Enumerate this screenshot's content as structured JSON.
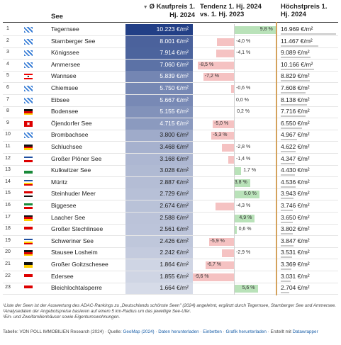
{
  "headers": {
    "see": "See",
    "kaufpreis": "Ø Kaufpreis 1. Hj. 2024",
    "kaufpreis_sort_icon": "sort-down-icon",
    "tendenz": "Tendenz 1. Hj. 2024 vs. 1. Hj. 2023",
    "hoechstpreis": "Höchstpreis 1. Hj. 2024"
  },
  "chart_data": {
    "type": "table",
    "columns": [
      "See",
      "Ø Kaufpreis 1. Hj. 2024",
      "Tendenz 1. Hj. 2024 vs. 1. Hj. 2023",
      "Höchstpreis 1. Hj. 2024"
    ],
    "rows": [
      {
        "rank": "1",
        "flag": "bavaria",
        "see": "Tegernsee",
        "price_label": "10.223 €/m²",
        "price": 10223,
        "tendenz_label": "9,8 %",
        "tendenz": 9.8,
        "max_label": "16.969 €/m²",
        "max": 16969
      },
      {
        "rank": "2",
        "flag": "bavaria",
        "see": "Starnberger See",
        "price_label": "8.001 €/m²",
        "price": 8001,
        "tendenz_label": "-4,0 %",
        "tendenz": -4.0,
        "max_label": "11.467 €/m²",
        "max": 11467
      },
      {
        "rank": "3",
        "flag": "bavaria",
        "see": "Königssee",
        "price_label": "7.914 €/m²",
        "price": 7914,
        "tendenz_label": "-4,1 %",
        "tendenz": -4.1,
        "max_label": "9.089 €/m²",
        "max": 9089
      },
      {
        "rank": "4",
        "flag": "bavaria",
        "see": "Ammersee",
        "price_label": "7.060 €/m²",
        "price": 7060,
        "tendenz_label": "-8,5 %",
        "tendenz": -8.5,
        "max_label": "10.166 €/m²",
        "max": 10166
      },
      {
        "rank": "5",
        "flag": "berlin",
        "see": "Wannsee",
        "price_label": "5.839 €/m²",
        "price": 5839,
        "tendenz_label": "-7,2 %",
        "tendenz": -7.2,
        "max_label": "8.829 €/m²",
        "max": 8829
      },
      {
        "rank": "6",
        "flag": "bavaria",
        "see": "Chiemsee",
        "price_label": "5.750 €/m²",
        "price": 5750,
        "tendenz_label": "-0,6 %",
        "tendenz": -0.6,
        "max_label": "7.608 €/m²",
        "max": 7608
      },
      {
        "rank": "7",
        "flag": "bavaria",
        "see": "Eibsee",
        "price_label": "5.667 €/m²",
        "price": 5667,
        "tendenz_label": "0,0 %",
        "tendenz": 0.0,
        "max_label": "8.138 €/m²",
        "max": 8138
      },
      {
        "rank": "8",
        "flag": "germany",
        "see": "Bodensee",
        "price_label": "5.155 €/m²",
        "price": 5155,
        "tendenz_label": "0,2 %",
        "tendenz": 0.2,
        "max_label": "7.716 €/m²",
        "max": 7716
      },
      {
        "rank": "9",
        "flag": "hamburg",
        "see": "Öjendorfer See",
        "price_label": "4.715 €/m²",
        "price": 4715,
        "tendenz_label": "-5,0 %",
        "tendenz": -5.0,
        "max_label": "6.550 €/m²",
        "max": 6550
      },
      {
        "rank": "10",
        "flag": "bavaria",
        "see": "Brombachsee",
        "price_label": "3.800 €/m²",
        "price": 3800,
        "tendenz_label": "-5,3 %",
        "tendenz": -5.3,
        "max_label": "4.967 €/m²",
        "max": 4967
      },
      {
        "rank": "11",
        "flag": "germany",
        "see": "Schluchsee",
        "price_label": "3.468 €/m²",
        "price": 3468,
        "tendenz_label": "-2,8 %",
        "tendenz": -2.8,
        "max_label": "4.622 €/m²",
        "max": 4622
      },
      {
        "rank": "12",
        "flag": "schleswig",
        "see": "Großer Plöner See",
        "price_label": "3.168 €/m²",
        "price": 3168,
        "tendenz_label": "-1,4 %",
        "tendenz": -1.4,
        "max_label": "4.347 €/m²",
        "max": 4347
      },
      {
        "rank": "13",
        "flag": "saxony",
        "see": "Kulkwitzer See",
        "price_label": "3.028 €/m²",
        "price": 3028,
        "tendenz_label": "1,7 %",
        "tendenz": 1.7,
        "max_label": "4.430 €/m²",
        "max": 4430
      },
      {
        "rank": "14",
        "flag": "mecklenburg",
        "see": "Müritz",
        "price_label": "2.887 €/m²",
        "price": 2887,
        "tendenz_label": "3,8 %",
        "tendenz": 3.8,
        "max_label": "4.536 €/m²",
        "max": 4536
      },
      {
        "rank": "15",
        "flag": "nrw",
        "see": "Steinhuder Meer",
        "price_label": "2.729 €/m²",
        "price": 2729,
        "tendenz_label": "6,0 %",
        "tendenz": 6.0,
        "max_label": "3.943 €/m²",
        "max": 3943
      },
      {
        "rank": "16",
        "flag": "nrw2",
        "see": "Biggesee",
        "price_label": "2.674 €/m²",
        "price": 2674,
        "tendenz_label": "-4,3 %",
        "tendenz": -4.3,
        "max_label": "3.746 €/m²",
        "max": 3746
      },
      {
        "rank": "17",
        "flag": "rlp",
        "see": "Laacher See",
        "price_label": "2.588 €/m²",
        "price": 2588,
        "tendenz_label": "4,9 %",
        "tendenz": 4.9,
        "max_label": "3.650 €/m²",
        "max": 3650
      },
      {
        "rank": "18",
        "flag": "brandenburg",
        "see": "Großer Stechlinsee",
        "price_label": "2.561 €/m²",
        "price": 2561,
        "tendenz_label": "0,6 %",
        "tendenz": 0.6,
        "max_label": "3.802 €/m²",
        "max": 3802
      },
      {
        "rank": "19",
        "flag": "mecklenburg",
        "see": "Schweriner See",
        "price_label": "2.426 €/m²",
        "price": 2426,
        "tendenz_label": "-5,9 %",
        "tendenz": -5.9,
        "max_label": "3.847 €/m²",
        "max": 3847
      },
      {
        "rank": "20",
        "flag": "anhalt",
        "see": "Stausee Losheim",
        "price_label": "2.242 €/m²",
        "price": 2242,
        "tendenz_label": "-2,9 %",
        "tendenz": -2.9,
        "max_label": "3.531 €/m²",
        "max": 3531
      },
      {
        "rank": "21",
        "flag": "saxonyanhalt",
        "see": "Großer Goitzschesee",
        "price_label": "1.864 €/m²",
        "price": 1864,
        "tendenz_label": "-6,7 %",
        "tendenz": -6.7,
        "max_label": "3.369 €/m²",
        "max": 3369
      },
      {
        "rank": "22",
        "flag": "brandenburg",
        "see": "Edersee",
        "price_label": "1.855 €/m²",
        "price": 1855,
        "tendenz_label": "-9,6 %",
        "tendenz": -9.6,
        "max_label": "3.031 €/m²",
        "max": 3031
      },
      {
        "rank": "23",
        "flag": "brandenburg",
        "see": "Bleichlochtalsperre",
        "price_label": "1.664 €/m²",
        "price": 1664,
        "tendenz_label": "5,6 %",
        "tendenz": 5.6,
        "max_label": "2.704 €/m²",
        "max": 2704
      }
    ]
  },
  "colors": {
    "price_high": "#223f86",
    "price_low": "#d6dbe8",
    "tendenz_positive": "#b9e2b9",
    "tendenz_negative": "#f5c2c2",
    "max_bar": "#c9c9c9",
    "divider": "#d4a25c",
    "link": "#1a5fa8"
  },
  "notes": {
    "line1": "¹Liste der Seen ist der Auswertung des ADAC-Rankings zu „Deutschlands schönste Seen\" (2024) angelehnt, ergänzt durch Tegernsee, Starnberger See und Ammersee.",
    "line2": "²Analysedaten der Angebotspreise basieren auf einem 5 km-Radius um das jeweilige See-Ufer.",
    "line3": "³Ein- und Zweifamilienhäuser sowie Eigentumswohnungen."
  },
  "footer": {
    "source_prefix": "Tabelle: VON POLL IMMOBILIEN Research (2024) · Quelle: ",
    "source_link": "GeoMap (2024)",
    "sep1": " · ",
    "download_link": "Daten herunterladen",
    "sep2": " · ",
    "embed_link": "Einbetten",
    "sep3": " · ",
    "graphic_link": "Grafik herunterladen",
    "created_prefix": " · Erstellt mit ",
    "datawrapper_link": "Datawrapper"
  }
}
